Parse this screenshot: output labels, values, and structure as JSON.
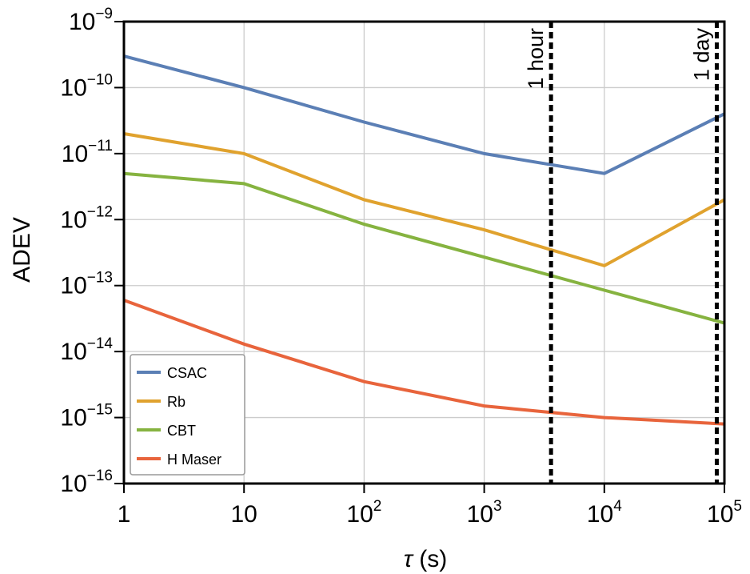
{
  "chart_data": {
    "type": "line",
    "xlabel_symbol": "τ",
    "xlabel_unit": " (s)",
    "ylabel": "ADEV",
    "x_scale": "log",
    "y_scale": "log",
    "xlim": [
      1,
      100000
    ],
    "ylim": [
      1e-16,
      1e-09
    ],
    "grid": true,
    "legend_position": "bottom-left",
    "x_ticks": [
      {
        "value": 1,
        "base": "1",
        "exp": ""
      },
      {
        "value": 10,
        "base": "10",
        "exp": ""
      },
      {
        "value": 100,
        "base": "10",
        "exp": "2"
      },
      {
        "value": 1000,
        "base": "10",
        "exp": "3"
      },
      {
        "value": 10000,
        "base": "10",
        "exp": "4"
      },
      {
        "value": 100000,
        "base": "10",
        "exp": "5"
      }
    ],
    "y_ticks": [
      {
        "value": 1e-09,
        "base": "10",
        "exp": "−9"
      },
      {
        "value": 1e-10,
        "base": "10",
        "exp": "−10"
      },
      {
        "value": 1e-11,
        "base": "10",
        "exp": "−11"
      },
      {
        "value": 1e-12,
        "base": "10",
        "exp": "−12"
      },
      {
        "value": 1e-13,
        "base": "10",
        "exp": "−13"
      },
      {
        "value": 1e-14,
        "base": "10",
        "exp": "−14"
      },
      {
        "value": 1e-15,
        "base": "10",
        "exp": "−15"
      },
      {
        "value": 1e-16,
        "base": "10",
        "exp": "−16"
      }
    ],
    "series": [
      {
        "name": "CSAC",
        "color": "#5b7fb5",
        "x": [
          1,
          10,
          100,
          1000,
          10000,
          100000
        ],
        "y": [
          3e-10,
          1e-10,
          3e-11,
          1e-11,
          5e-12,
          4e-11
        ]
      },
      {
        "name": "Rb",
        "color": "#e0a22e",
        "x": [
          1,
          10,
          100,
          1000,
          10000,
          100000
        ],
        "y": [
          2e-11,
          1e-11,
          2e-12,
          7e-13,
          2e-13,
          2e-12
        ]
      },
      {
        "name": "CBT",
        "color": "#86b340",
        "x": [
          1,
          10,
          100,
          1000,
          10000,
          100000
        ],
        "y": [
          5e-12,
          3.5e-12,
          8.5e-13,
          2.7e-13,
          8.5e-14,
          2.7e-14
        ]
      },
      {
        "name": "H Maser",
        "color": "#e8643c",
        "x": [
          1,
          10,
          100,
          1000,
          10000,
          100000
        ],
        "y": [
          6e-14,
          1.3e-14,
          3.5e-15,
          1.5e-15,
          1e-15,
          8e-16
        ]
      }
    ],
    "annotations": [
      {
        "label": "1 hour",
        "x": 3600
      },
      {
        "label": "1 day",
        "x": 86400
      }
    ]
  }
}
